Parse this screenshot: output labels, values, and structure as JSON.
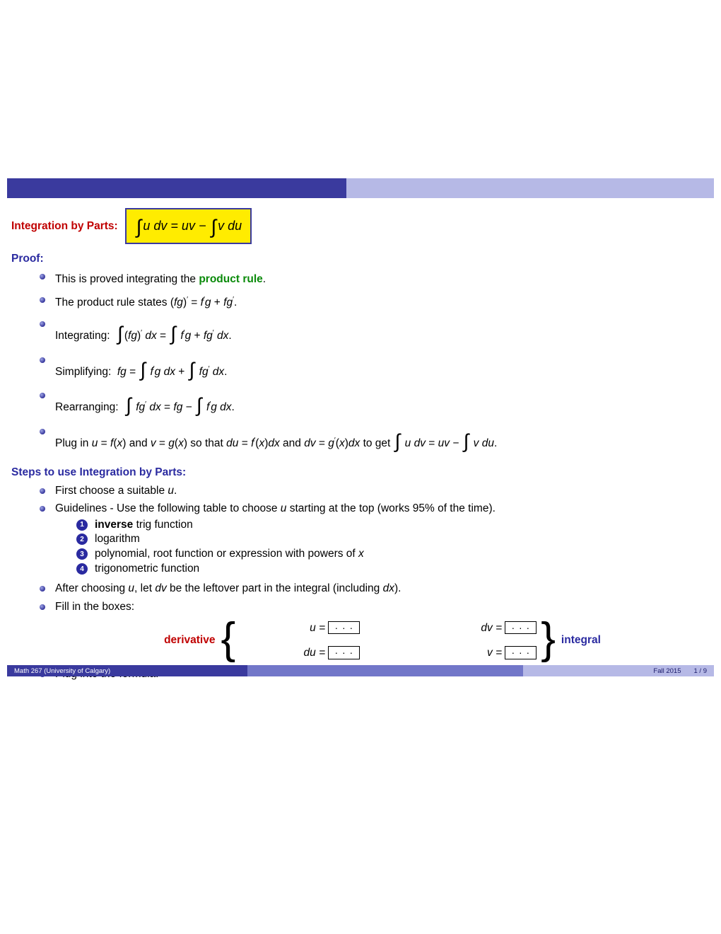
{
  "colors": {
    "bar_dark": "#3a3a9e",
    "bar_mid": "#7277c9",
    "bar_light": "#b6b9e6",
    "red": "#c00000",
    "blue": "#2a2aa0",
    "green": "#0a8a0a",
    "highlight_bg": "#ffec00",
    "highlight_border": "#3a3a9e"
  },
  "head": {
    "title": "Integration by Parts:",
    "formula": "∫ u dv = uv − ∫ v du"
  },
  "proof": {
    "heading": "Proof:",
    "b1_pre": "This is proved integrating the ",
    "b1_green": "product rule",
    "b1_post": ".",
    "b2": "The product rule states (fg)′ = f′g + fg′.",
    "b3": "Integrating:  ∫ (fg)′ dx = ∫ f′g + fg′ dx.",
    "b4": "Simplifying:  fg = ∫ f′g dx + ∫ fg′ dx.",
    "b5": "Rearranging:  ∫ fg′ dx = fg − ∫ f′g dx.",
    "b6": "Plug in u = f(x) and v = g(x) so that du = f′(x)dx and dv = g′(x)dx to get ∫ u dv = uv − ∫ v du."
  },
  "steps": {
    "heading": "Steps to use Integration by Parts:",
    "s1": "First choose a suitable u.",
    "s2": "Guidelines - Use the following table to choose u starting at the top (works 95% of the time).",
    "e1_bold": "inverse",
    "e1_rest": " trig function",
    "e2": "logarithm",
    "e3": "polynomial, root function or expression with powers of x",
    "e4": "trigonometric function",
    "s3": "After choosing u, let dv be the leftover part in the integral (including dx).",
    "s4": "Fill in the boxes:",
    "deriv_label": "derivative",
    "int_label": "integral",
    "box_u": "u =",
    "box_du": "du =",
    "box_dv": "dv =",
    "box_v": "v =",
    "dots": "· · ·",
    "s5": "Plug into the formula!"
  },
  "footer": {
    "left": "Math 267  (University of Calgary)",
    "term": "Fall 2015",
    "page": "1 / 9"
  }
}
